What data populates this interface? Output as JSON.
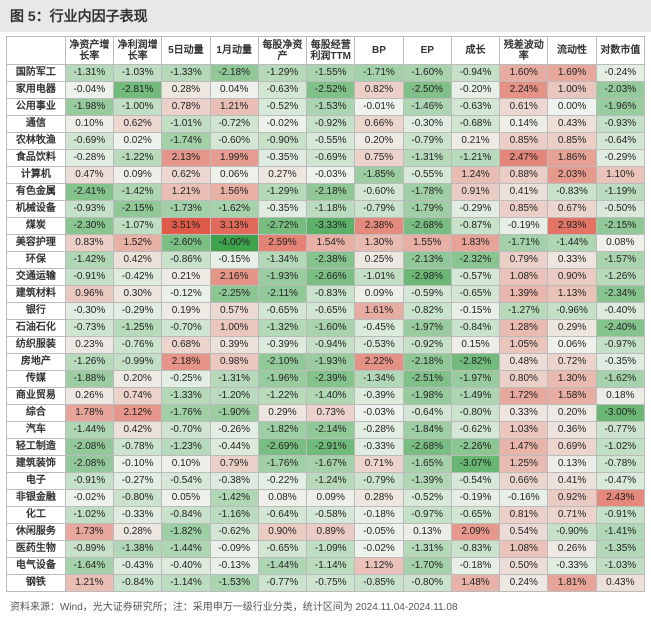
{
  "title": "图 5：行业内因子表现",
  "footnote": "资料来源：Wind，光大证券研究所；注：采用申万一级行业分类，统计区间为 2024.11.04-2024.11.08",
  "color_scale": {
    "min_color": "#3fa34d",
    "mid_color": "#eef3ed",
    "max_color": "#e05a4a",
    "min_value": -4.0,
    "mid_value": 0.0,
    "max_value": 3.5
  },
  "table": {
    "columns": [
      "",
      "净资产增长率",
      "净利润增长率",
      "5日动量",
      "1月动量",
      "每股净资产",
      "每股经营利润TTM",
      "BP",
      "EP",
      "成长",
      "残差波动率",
      "流动性",
      "对数市值"
    ],
    "rows": [
      {
        "label": "国防军工",
        "vals": [
          -1.31,
          -1.03,
          -1.33,
          -2.18,
          -1.29,
          -1.55,
          -1.71,
          -1.6,
          -0.94,
          1.6,
          1.69,
          -0.24
        ]
      },
      {
        "label": "家用电器",
        "vals": [
          -0.04,
          -2.81,
          0.28,
          0.04,
          -0.63,
          -2.52,
          0.82,
          -2.5,
          -0.2,
          2.24,
          1.0,
          -2.03
        ]
      },
      {
        "label": "公用事业",
        "vals": [
          -1.98,
          -1.0,
          0.78,
          1.21,
          -0.52,
          -1.53,
          -0.01,
          -1.46,
          -0.63,
          0.61,
          0.0,
          -1.96
        ]
      },
      {
        "label": "通信",
        "vals": [
          0.1,
          0.62,
          -1.01,
          -0.72,
          -0.02,
          -0.92,
          0.66,
          -0.3,
          -0.68,
          0.14,
          0.43,
          -0.93
        ]
      },
      {
        "label": "农林牧渔",
        "vals": [
          -0.69,
          0.02,
          -1.74,
          -0.6,
          -0.9,
          -0.55,
          0.2,
          -0.79,
          0.21,
          0.85,
          0.85,
          -0.64
        ]
      },
      {
        "label": "食品饮料",
        "vals": [
          -0.28,
          -1.22,
          2.13,
          1.99,
          -0.35,
          -0.69,
          0.75,
          -1.31,
          -1.21,
          2.47,
          1.86,
          -0.29
        ]
      },
      {
        "label": "计算机",
        "vals": [
          0.47,
          0.09,
          0.62,
          0.06,
          0.27,
          -0.03,
          -1.85,
          -0.55,
          1.24,
          0.88,
          2.03,
          1.1
        ]
      },
      {
        "label": "有色金属",
        "vals": [
          -2.41,
          -1.42,
          1.21,
          1.56,
          -1.29,
          -2.18,
          -0.6,
          -1.78,
          0.91,
          0.41,
          -0.83,
          -1.19
        ]
      },
      {
        "label": "机械设备",
        "vals": [
          -0.93,
          -2.15,
          -1.73,
          -1.62,
          -0.35,
          -1.18,
          -0.79,
          -1.79,
          -0.29,
          0.85,
          0.67,
          -0.5
        ]
      },
      {
        "label": "煤炭",
        "vals": [
          -2.3,
          -1.07,
          3.51,
          3.13,
          -2.72,
          -3.33,
          2.38,
          -2.68,
          -0.87,
          -0.19,
          2.93,
          -2.15
        ]
      },
      {
        "label": "美容护理",
        "vals": [
          0.83,
          1.52,
          -2.6,
          -4.0,
          2.59,
          1.54,
          1.3,
          1.55,
          1.83,
          -1.71,
          -1.44,
          0.08
        ]
      },
      {
        "label": "环保",
        "vals": [
          -1.42,
          0.42,
          -0.86,
          -0.15,
          -1.34,
          -2.38,
          0.25,
          -2.13,
          -2.32,
          0.79,
          0.33,
          -1.57
        ]
      },
      {
        "label": "交通运输",
        "vals": [
          -0.91,
          -0.42,
          0.21,
          2.16,
          -1.93,
          -2.66,
          -1.01,
          -2.98,
          -0.57,
          1.08,
          0.9,
          -1.26
        ]
      },
      {
        "label": "建筑材料",
        "vals": [
          0.96,
          0.3,
          -0.12,
          -2.25,
          -2.11,
          -0.83,
          0.09,
          -0.59,
          -0.65,
          1.39,
          1.13,
          -2.34
        ]
      },
      {
        "label": "银行",
        "vals": [
          -0.3,
          -0.29,
          0.19,
          0.57,
          -0.65,
          -0.65,
          1.61,
          -0.82,
          -0.15,
          -1.27,
          -0.96,
          -0.4
        ]
      },
      {
        "label": "石油石化",
        "vals": [
          -0.73,
          -1.25,
          -0.7,
          1.0,
          -1.32,
          -1.6,
          -0.45,
          -1.97,
          -0.84,
          1.28,
          0.29,
          -2.4
        ]
      },
      {
        "label": "纺织服装",
        "vals": [
          0.23,
          -0.76,
          0.68,
          0.39,
          -0.39,
          -0.94,
          -0.53,
          -0.92,
          0.15,
          1.05,
          0.06,
          -0.97
        ]
      },
      {
        "label": "房地产",
        "vals": [
          -1.26,
          -0.99,
          2.18,
          0.98,
          -2.1,
          -1.93,
          2.22,
          -2.18,
          -2.82,
          0.48,
          0.72,
          -0.35
        ]
      },
      {
        "label": "传媒",
        "vals": [
          -1.88,
          0.2,
          -0.25,
          -1.31,
          -1.96,
          -2.39,
          -1.34,
          -2.51,
          -1.97,
          0.8,
          1.3,
          -1.62
        ]
      },
      {
        "label": "商业贸易",
        "vals": [
          0.26,
          0.74,
          -1.33,
          -1.2,
          -1.22,
          -1.4,
          -0.39,
          -1.98,
          -1.49,
          1.72,
          1.58,
          0.18
        ]
      },
      {
        "label": "综合",
        "vals": [
          1.78,
          2.12,
          -1.76,
          -1.9,
          0.29,
          0.73,
          -0.03,
          -0.64,
          -0.8,
          0.33,
          0.2,
          -3.0
        ]
      },
      {
        "label": "汽车",
        "vals": [
          -1.44,
          0.42,
          -0.7,
          -0.26,
          -1.82,
          -2.14,
          -0.28,
          -1.84,
          -0.62,
          1.03,
          0.36,
          -0.77
        ]
      },
      {
        "label": "轻工制造",
        "vals": [
          -2.08,
          -0.78,
          -1.23,
          -0.44,
          -2.69,
          -2.91,
          -0.33,
          -2.68,
          -2.26,
          1.47,
          0.69,
          -1.02
        ]
      },
      {
        "label": "建筑装饰",
        "vals": [
          -2.08,
          -0.1,
          0.1,
          0.79,
          -1.76,
          -1.67,
          0.71,
          -1.65,
          -3.07,
          1.25,
          0.13,
          -0.78
        ]
      },
      {
        "label": "电子",
        "vals": [
          -0.91,
          -0.27,
          -0.54,
          -0.38,
          -0.22,
          -1.24,
          -0.79,
          -1.39,
          -0.54,
          0.66,
          0.41,
          -0.47
        ]
      },
      {
        "label": "非银金融",
        "vals": [
          -0.02,
          -0.8,
          0.05,
          -1.42,
          0.08,
          0.09,
          0.28,
          -0.52,
          -0.19,
          -0.16,
          0.92,
          2.43
        ]
      },
      {
        "label": "化工",
        "vals": [
          -1.02,
          -0.33,
          -0.84,
          -1.16,
          -0.64,
          -0.58,
          -0.18,
          -0.97,
          -0.65,
          0.81,
          0.71,
          -0.91
        ]
      },
      {
        "label": "休闲服务",
        "vals": [
          1.73,
          0.28,
          -1.82,
          -0.62,
          0.9,
          0.89,
          -0.05,
          0.13,
          2.09,
          0.54,
          -0.9,
          -1.41
        ]
      },
      {
        "label": "医药生物",
        "vals": [
          -0.89,
          -1.38,
          -1.44,
          -0.09,
          -0.65,
          -1.09,
          -0.02,
          -1.31,
          -0.83,
          1.08,
          0.26,
          -1.35
        ]
      },
      {
        "label": "电气设备",
        "vals": [
          -1.64,
          -0.43,
          -0.4,
          -0.13,
          -1.44,
          -1.14,
          1.12,
          -1.7,
          -0.18,
          0.5,
          -0.33,
          -1.03
        ]
      },
      {
        "label": "钢铁",
        "vals": [
          1.21,
          -0.84,
          -1.14,
          -1.53,
          -0.77,
          -0.75,
          -0.85,
          -0.8,
          1.48,
          0.24,
          1.81,
          0.43
        ]
      }
    ]
  }
}
